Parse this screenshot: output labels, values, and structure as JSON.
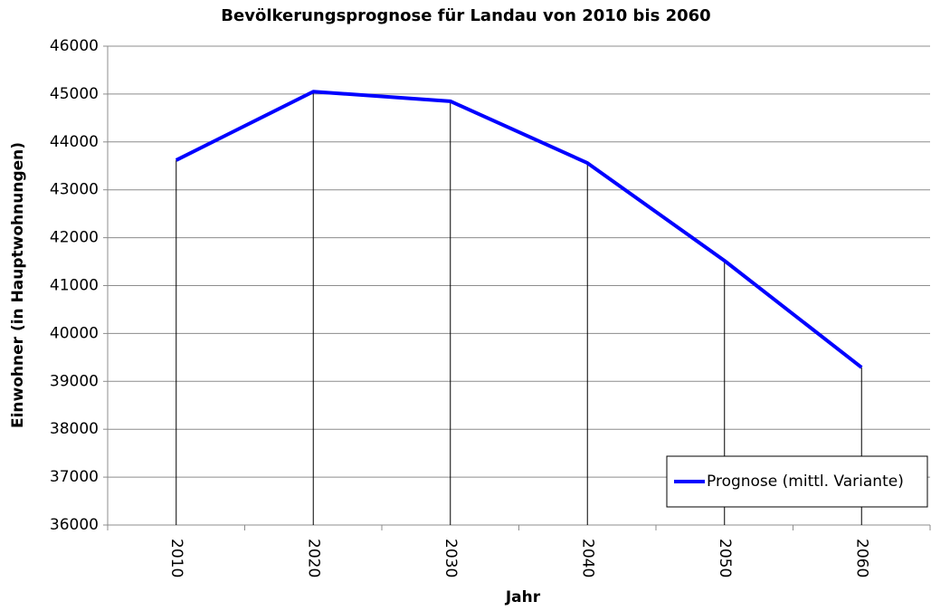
{
  "chart_data": {
    "type": "line",
    "title": "Bevölkerungsprognose für Landau von 2010 bis 2060",
    "x_label": "Jahr",
    "y_label": "Einwohner (in Hauptwohnungen)",
    "categories": [
      "2010",
      "2020",
      "2030",
      "2040",
      "2050",
      "2060"
    ],
    "series": [
      {
        "name": "Prognose (mittl. Variante)",
        "color": "#0000ff",
        "values": [
          43620,
          45050,
          44850,
          43560,
          41520,
          39290
        ]
      }
    ],
    "ylim": [
      36000,
      46000
    ],
    "yticks": [
      36000,
      37000,
      38000,
      39000,
      40000,
      41000,
      42000,
      43000,
      44000,
      45000,
      46000
    ],
    "grid": true,
    "drop_lines": true,
    "legend": "lower right"
  }
}
